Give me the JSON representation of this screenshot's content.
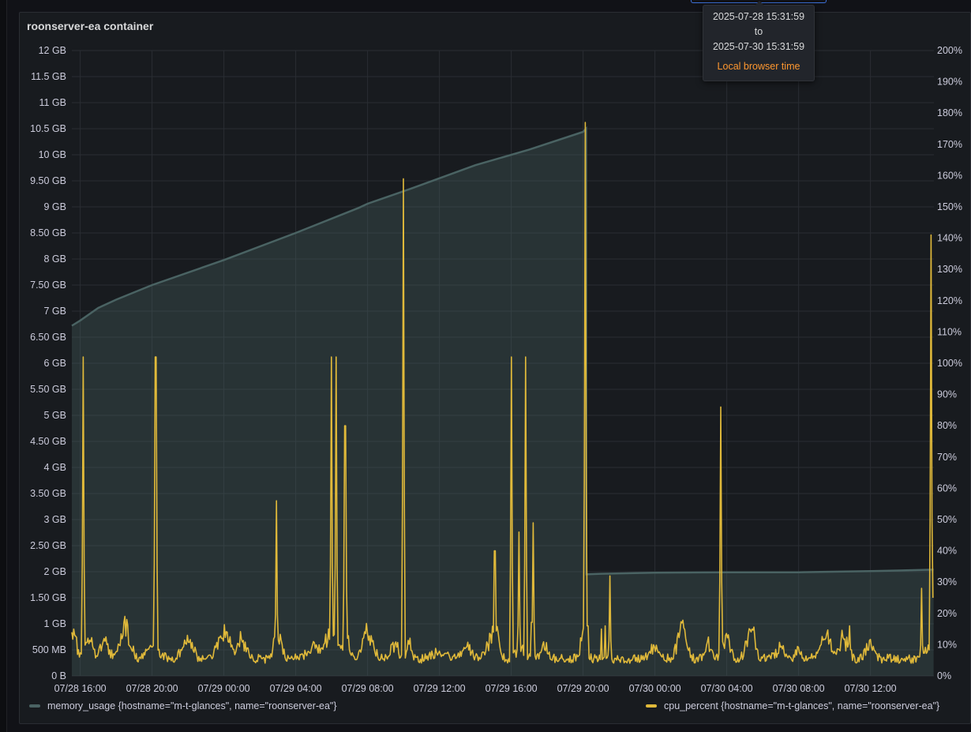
{
  "panel": {
    "title": "roonserver-ea container"
  },
  "tooltip": {
    "start": "2025-07-28 15:31:59",
    "to": "to",
    "end": "2025-07-30 15:31:59",
    "tz": "Local browser time"
  },
  "colors": {
    "memory": "#4a6363",
    "cpu": "#e0b93a"
  },
  "chart_data": {
    "type": "line",
    "x_range": [
      "2025-07-28 15:31:59",
      "2025-07-30 15:31:59"
    ],
    "x_tick_labels": [
      "07/28 16:00",
      "07/28 20:00",
      "07/29 00:00",
      "07/29 04:00",
      "07/29 08:00",
      "07/29 12:00",
      "07/29 16:00",
      "07/29 20:00",
      "07/30 00:00",
      "07/30 04:00",
      "07/30 08:00",
      "07/30 12:00"
    ],
    "y_left": {
      "unit": "GB",
      "range": [
        0,
        12
      ],
      "ticks": [
        "0 B",
        "500 MB",
        "1 GB",
        "1.50 GB",
        "2 GB",
        "2.50 GB",
        "3 GB",
        "3.50 GB",
        "4 GB",
        "4.50 GB",
        "5 GB",
        "5.50 GB",
        "6 GB",
        "6.50 GB",
        "7 GB",
        "7.50 GB",
        "8 GB",
        "8.50 GB",
        "9 GB",
        "9.50 GB",
        "10 GB",
        "10.5 GB",
        "11 GB",
        "11.5 GB",
        "12 GB"
      ]
    },
    "y_right": {
      "unit": "%",
      "range": [
        0,
        200
      ],
      "ticks": [
        "0%",
        "10%",
        "20%",
        "30%",
        "40%",
        "50%",
        "60%",
        "70%",
        "80%",
        "90%",
        "100%",
        "110%",
        "120%",
        "130%",
        "140%",
        "150%",
        "160%",
        "170%",
        "180%",
        "190%",
        "200%"
      ]
    },
    "grid": true,
    "legend_position": "bottom",
    "series": [
      {
        "name": "memory_usage {hostname=\"m-t-glances\", name=\"roonserver-ea\"}",
        "axis": "left",
        "style": "area",
        "points": [
          [
            "07/28 15:32",
            6.72
          ],
          [
            "07/28 16:00",
            6.82
          ],
          [
            "07/28 17:00",
            7.06
          ],
          [
            "07/28 18:00",
            7.22
          ],
          [
            "07/28 20:00",
            7.5
          ],
          [
            "07/29 00:00",
            7.98
          ],
          [
            "07/29 04:00",
            8.5
          ],
          [
            "07/29 07:30",
            8.98
          ],
          [
            "07/29 08:00",
            9.06
          ],
          [
            "07/29 10:30",
            9.36
          ],
          [
            "07/29 14:00",
            9.8
          ],
          [
            "07/29 17:00",
            10.1
          ],
          [
            "07/29 20:00",
            10.44
          ],
          [
            "07/29 20:10",
            10.5
          ],
          [
            "07/29 20:11",
            1.95
          ],
          [
            "07/29 21:00",
            1.96
          ],
          [
            "07/30 00:00",
            1.98
          ],
          [
            "07/30 04:00",
            1.99
          ],
          [
            "07/30 08:00",
            1.99
          ],
          [
            "07/30 12:00",
            2.01
          ],
          [
            "07/30 15:31",
            2.04
          ]
        ]
      },
      {
        "name": "cpu_percent {hostname=\"m-t-glances\", name=\"roonserver-ea\"}",
        "axis": "right",
        "style": "line",
        "baseline_pct": 4,
        "noise_pct": 3,
        "humps": [
          [
            "07/28 15:40",
            10,
            12
          ],
          [
            "07/28 16:30",
            8,
            18
          ],
          [
            "07/28 17:20",
            6,
            20
          ],
          [
            "07/28 18:30",
            12,
            22
          ],
          [
            "07/28 20:00",
            4,
            30
          ],
          [
            "07/28 22:00",
            6,
            25
          ],
          [
            "07/29 00:00",
            11,
            25
          ],
          [
            "07/29 01:00",
            8,
            20
          ],
          [
            "07/29 03:00",
            9,
            18
          ],
          [
            "07/29 05:00",
            5,
            25
          ],
          [
            "07/29 06:00",
            11,
            25
          ],
          [
            "07/29 06:50",
            7,
            15
          ],
          [
            "07/29 08:00",
            10,
            25
          ],
          [
            "07/29 09:30",
            6,
            15
          ],
          [
            "07/29 10:20",
            7,
            8
          ],
          [
            "07/29 12:00",
            3,
            30
          ],
          [
            "07/29 13:30",
            5,
            20
          ],
          [
            "07/29 14:50",
            7,
            20
          ],
          [
            "07/29 15:10",
            10,
            12
          ],
          [
            "07/29 16:30",
            5,
            18
          ],
          [
            "07/29 17:50",
            5,
            15
          ],
          [
            "07/29 20:00",
            10,
            12
          ],
          [
            "07/30 00:00",
            5,
            20
          ],
          [
            "07/30 01:30",
            11,
            20
          ],
          [
            "07/30 03:00",
            6,
            15
          ],
          [
            "07/30 04:00",
            8,
            15
          ],
          [
            "07/30 05:20",
            11,
            20
          ],
          [
            "07/30 07:00",
            4,
            20
          ],
          [
            "07/30 08:00",
            4,
            15
          ],
          [
            "07/30 09:30",
            9,
            25
          ],
          [
            "07/30 10:30",
            8,
            20
          ],
          [
            "07/30 12:00",
            5,
            20
          ],
          [
            "07/30 15:10",
            4,
            12
          ],
          [
            "07/30 15:25",
            8,
            5
          ]
        ],
        "spikes": [
          [
            "07/28 15:32",
            14
          ],
          [
            "07/28 16:10",
            102
          ],
          [
            "07/28 20:12",
            102
          ],
          [
            "07/29 02:55",
            56
          ],
          [
            "07/29 06:00",
            102
          ],
          [
            "07/29 06:15",
            102
          ],
          [
            "07/29 06:45",
            80
          ],
          [
            "07/29 10:00",
            159
          ],
          [
            "07/29 15:05",
            40
          ],
          [
            "07/29 16:00",
            102
          ],
          [
            "07/29 16:25",
            46
          ],
          [
            "07/29 16:48",
            102
          ],
          [
            "07/29 17:12",
            49
          ],
          [
            "07/29 20:08",
            177
          ],
          [
            "07/29 20:15",
            16
          ],
          [
            "07/29 21:00",
            15
          ],
          [
            "07/29 21:13",
            16
          ],
          [
            "07/29 21:30",
            32
          ],
          [
            "07/30 03:40",
            86
          ],
          [
            "07/30 10:50",
            16
          ],
          [
            "07/30 14:50",
            28
          ],
          [
            "07/30 15:22",
            141
          ],
          [
            "07/30 15:28",
            25
          ]
        ]
      }
    ]
  }
}
